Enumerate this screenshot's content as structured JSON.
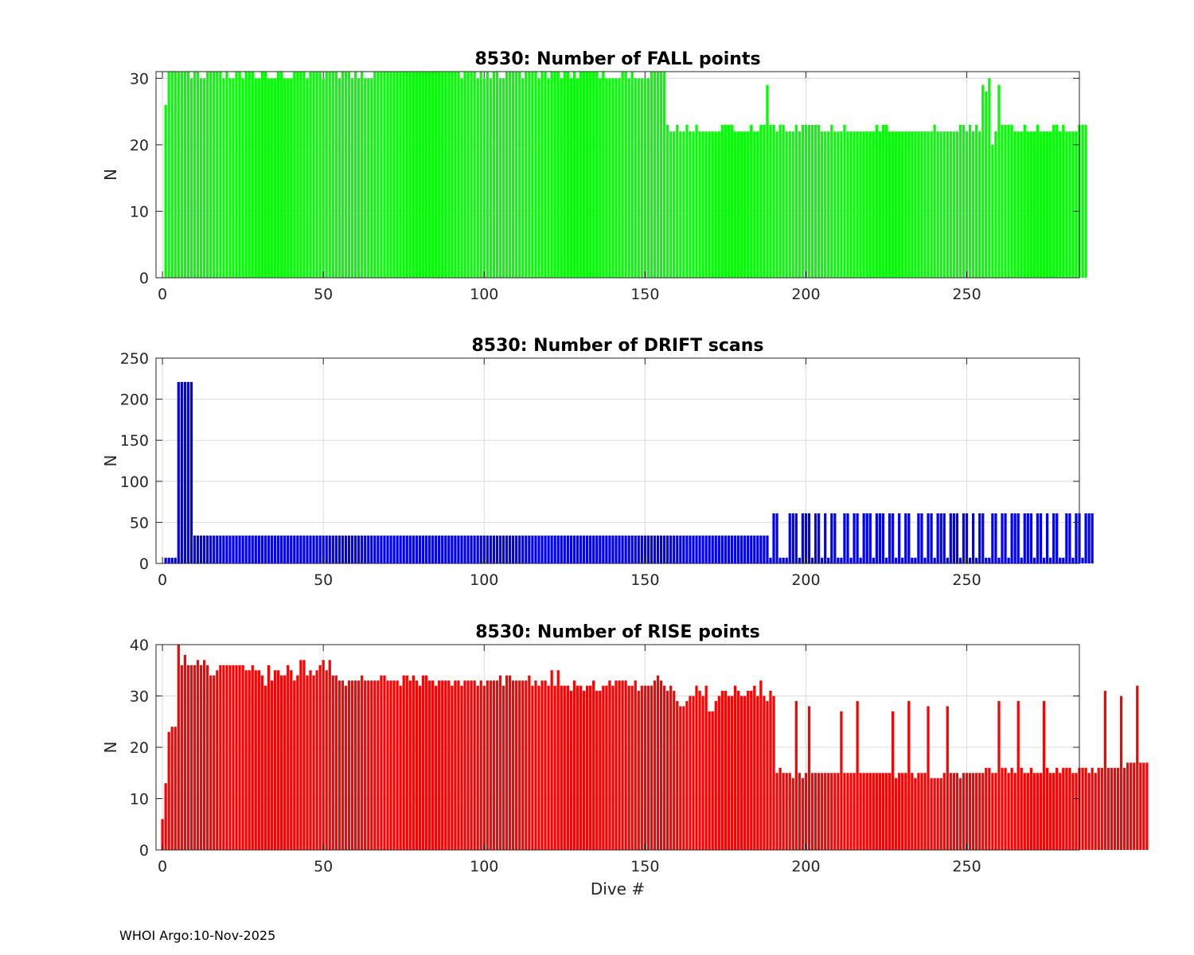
{
  "footer": "WHOI Argo:10-Nov-2025",
  "chart_data": [
    {
      "type": "bar",
      "title": "8530: Number of FALL points",
      "xlabel": "",
      "ylabel": "N",
      "xlim": [
        -2,
        285
      ],
      "ylim": [
        0,
        31
      ],
      "xticks": [
        0,
        50,
        100,
        150,
        200,
        250
      ],
      "xtick_labels": [
        "0",
        "50",
        "100",
        "150",
        "200",
        "250"
      ],
      "yticks": [
        0,
        10,
        20,
        30
      ],
      "ytick_labels": [
        "0",
        "10",
        "20",
        "30"
      ],
      "color": "#00ff00",
      "grid": true,
      "x_start": 1,
      "values": [
        26,
        31,
        31,
        31,
        31,
        31,
        31,
        31,
        30,
        31,
        31,
        30,
        30,
        31,
        31,
        31,
        31,
        31,
        30,
        31,
        30,
        30,
        31,
        31,
        30,
        31,
        31,
        31,
        30,
        30,
        31,
        31,
        30,
        30,
        30,
        31,
        31,
        30,
        30,
        30,
        31,
        31,
        31,
        31,
        30,
        31,
        31,
        31,
        31,
        30,
        31,
        31,
        31,
        31,
        30,
        31,
        31,
        31,
        30,
        31,
        30,
        31,
        30,
        30,
        30,
        31,
        31,
        31,
        31,
        31,
        31,
        31,
        31,
        31,
        31,
        31,
        31,
        31,
        31,
        31,
        31,
        31,
        31,
        31,
        31,
        31,
        31,
        31,
        31,
        31,
        31,
        31,
        30,
        31,
        31,
        31,
        31,
        30,
        31,
        30,
        31,
        30,
        31,
        31,
        30,
        30,
        31,
        31,
        31,
        31,
        31,
        30,
        31,
        31,
        31,
        31,
        30,
        31,
        31,
        30,
        31,
        31,
        31,
        30,
        31,
        31,
        30,
        31,
        30,
        31,
        31,
        31,
        31,
        31,
        31,
        30,
        31,
        30,
        30,
        30,
        30,
        30,
        31,
        31,
        30,
        31,
        30,
        30,
        30,
        30,
        30,
        31,
        31,
        31,
        31,
        31,
        23,
        22,
        22,
        23,
        22,
        22,
        23,
        22,
        22,
        23,
        22,
        22,
        22,
        22,
        22,
        22,
        22,
        23,
        23,
        23,
        23,
        22,
        22,
        22,
        22,
        22,
        23,
        22,
        22,
        23,
        23,
        29,
        23,
        23,
        22,
        23,
        23,
        22,
        22,
        22,
        23,
        22,
        23,
        23,
        23,
        23,
        23,
        23,
        22,
        22,
        22,
        23,
        22,
        22,
        22,
        23,
        22,
        22,
        22,
        22,
        22,
        22,
        22,
        22,
        22,
        23,
        22,
        23,
        23,
        22,
        22,
        22,
        22,
        22,
        22,
        22,
        22,
        22,
        22,
        22,
        22,
        22,
        22,
        23,
        22,
        22,
        22,
        22,
        22,
        22,
        22,
        23,
        23,
        22,
        23,
        22,
        23,
        22,
        29,
        28,
        30,
        20,
        22,
        29,
        23,
        23,
        23,
        23,
        22,
        22,
        22,
        23,
        22,
        22,
        22,
        23,
        22,
        22,
        22,
        22,
        23,
        23,
        22,
        23,
        22,
        22,
        22,
        22,
        23,
        23,
        23
      ]
    },
    {
      "type": "bar",
      "title": "8530: Number of DRIFT scans",
      "xlabel": "",
      "ylabel": "N",
      "xlim": [
        -2,
        285
      ],
      "ylim": [
        0,
        250
      ],
      "xticks": [
        0,
        50,
        100,
        150,
        200,
        250
      ],
      "xtick_labels": [
        "0",
        "50",
        "100",
        "150",
        "200",
        "250"
      ],
      "yticks": [
        0,
        50,
        100,
        150,
        200,
        250
      ],
      "ytick_labels": [
        "0",
        "50",
        "100",
        "150",
        "200",
        "250"
      ],
      "color": "#0000ff",
      "grid": true,
      "x_start": 1,
      "values": [
        7,
        7,
        7,
        7,
        221,
        221,
        221,
        221,
        221,
        34,
        34,
        34,
        34,
        34,
        34,
        34,
        34,
        34,
        34,
        34,
        34,
        34,
        34,
        34,
        34,
        34,
        34,
        34,
        34,
        34,
        34,
        34,
        34,
        34,
        34,
        34,
        34,
        34,
        34,
        34,
        34,
        34,
        34,
        34,
        34,
        34,
        34,
        34,
        34,
        34,
        34,
        34,
        34,
        34,
        34,
        34,
        34,
        34,
        34,
        34,
        34,
        34,
        34,
        34,
        34,
        34,
        34,
        34,
        34,
        34,
        34,
        34,
        34,
        34,
        34,
        34,
        34,
        34,
        34,
        34,
        34,
        34,
        34,
        34,
        34,
        34,
        34,
        34,
        34,
        34,
        34,
        34,
        34,
        34,
        34,
        34,
        34,
        34,
        34,
        34,
        34,
        34,
        34,
        34,
        34,
        34,
        34,
        34,
        34,
        34,
        34,
        34,
        34,
        34,
        34,
        34,
        34,
        34,
        34,
        34,
        34,
        34,
        34,
        34,
        34,
        34,
        34,
        34,
        34,
        34,
        34,
        34,
        34,
        34,
        34,
        34,
        34,
        34,
        34,
        34,
        34,
        34,
        34,
        34,
        34,
        34,
        34,
        34,
        34,
        34,
        34,
        34,
        34,
        34,
        34,
        34,
        34,
        34,
        34,
        34,
        34,
        34,
        34,
        34,
        34,
        34,
        34,
        34,
        34,
        34,
        34,
        34,
        34,
        34,
        34,
        34,
        34,
        34,
        34,
        34,
        34,
        34,
        34,
        34,
        34,
        34,
        34,
        34,
        7,
        61,
        61,
        7,
        7,
        7,
        61,
        61,
        61,
        7,
        61,
        61,
        61,
        7,
        61,
        61,
        7,
        61,
        7,
        61,
        61,
        7,
        7,
        61,
        61,
        7,
        61,
        61,
        7,
        61,
        61,
        61,
        7,
        61,
        61,
        61,
        7,
        61,
        61,
        7,
        61,
        7,
        61,
        61,
        7,
        7,
        61,
        61,
        7,
        61,
        61,
        7,
        61,
        61,
        61,
        7,
        61,
        61,
        61,
        7,
        61,
        61,
        7,
        61,
        7,
        61,
        61,
        7,
        7,
        61,
        61,
        7,
        61,
        61,
        7,
        61,
        61,
        61,
        7,
        61,
        61,
        61,
        7,
        61,
        61,
        7,
        61,
        7,
        61,
        61,
        7,
        7,
        61,
        61,
        7,
        61,
        61,
        7,
        61,
        61,
        61
      ]
    },
    {
      "type": "bar",
      "title": "8530: Number of RISE points",
      "xlabel": "Dive #",
      "ylabel": "N",
      "xlim": [
        -2,
        285
      ],
      "ylim": [
        0,
        40
      ],
      "xticks": [
        0,
        50,
        100,
        150,
        200,
        250
      ],
      "xtick_labels": [
        "0",
        "50",
        "100",
        "150",
        "200",
        "250"
      ],
      "yticks": [
        0,
        10,
        20,
        30,
        40
      ],
      "ytick_labels": [
        "0",
        "10",
        "20",
        "30",
        "40"
      ],
      "color": "#ff0000",
      "grid": true,
      "x_start": 0,
      "values": [
        6,
        13,
        23,
        24,
        24,
        40,
        36,
        38,
        36,
        36,
        36,
        37,
        36,
        37,
        36,
        34,
        34,
        35,
        36,
        36,
        36,
        36,
        36,
        36,
        36,
        36,
        35,
        35,
        36,
        35,
        35,
        34,
        32,
        36,
        33,
        35,
        35,
        34,
        34,
        36,
        35,
        33,
        34,
        37,
        37,
        34,
        35,
        34,
        35,
        36,
        37,
        35,
        37,
        34,
        34,
        33,
        33,
        32,
        33,
        33,
        33,
        33,
        34,
        33,
        33,
        33,
        33,
        33,
        34,
        34,
        33,
        33,
        33,
        33,
        32,
        34,
        34,
        33,
        34,
        33,
        32,
        34,
        34,
        33,
        33,
        32,
        33,
        33,
        33,
        33,
        32,
        33,
        33,
        32,
        33,
        33,
        33,
        33,
        32,
        33,
        32,
        33,
        33,
        33,
        33,
        34,
        32,
        34,
        34,
        33,
        33,
        33,
        33,
        33,
        34,
        32,
        33,
        32,
        33,
        33,
        32,
        35,
        32,
        35,
        32,
        32,
        32,
        31,
        33,
        32,
        32,
        31,
        32,
        32,
        33,
        31,
        31,
        32,
        32,
        33,
        32,
        33,
        33,
        33,
        33,
        32,
        32,
        33,
        31,
        32,
        32,
        32,
        32,
        33,
        34,
        33,
        32,
        31,
        32,
        31,
        29,
        28,
        28,
        29,
        30,
        30,
        32,
        31,
        30,
        32,
        27,
        27,
        29,
        30,
        31,
        31,
        30,
        30,
        32,
        31,
        30,
        30,
        31,
        31,
        32,
        30,
        33,
        30,
        29,
        31,
        30,
        15,
        16,
        15,
        15,
        15,
        14,
        29,
        15,
        14,
        15,
        28,
        15,
        15,
        15,
        15,
        15,
        15,
        15,
        15,
        15,
        27,
        15,
        15,
        15,
        15,
        29,
        15,
        15,
        15,
        15,
        15,
        15,
        15,
        15,
        15,
        15,
        27,
        14,
        15,
        15,
        15,
        29,
        15,
        14,
        15,
        15,
        15,
        28,
        14,
        14,
        14,
        14,
        15,
        28,
        15,
        15,
        15,
        14,
        15,
        15,
        15,
        15,
        15,
        15,
        15,
        16,
        16,
        15,
        15,
        29,
        16,
        16,
        15,
        16,
        15,
        29,
        16,
        15,
        15,
        16,
        15,
        15,
        15,
        29,
        16,
        15,
        15,
        16,
        15,
        16,
        16,
        16,
        15,
        15,
        16,
        16,
        16,
        15,
        16,
        15,
        16,
        16,
        31,
        16,
        16,
        16,
        16,
        30,
        16,
        17,
        17,
        17,
        32,
        17,
        17,
        17
      ]
    }
  ]
}
